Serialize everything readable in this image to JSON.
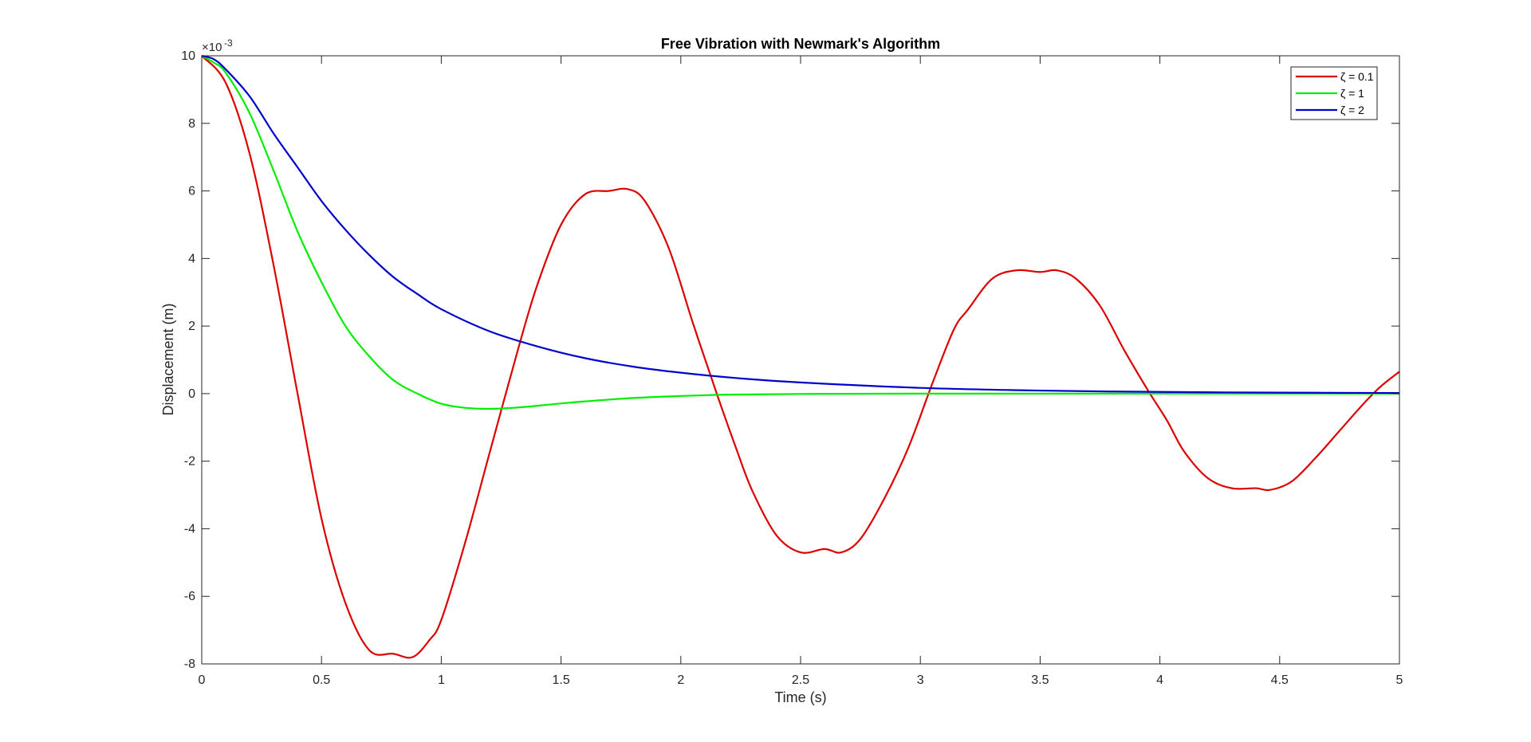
{
  "chart_data": {
    "type": "line",
    "title": "Free Vibration with Newmark's Algorithm",
    "xlabel": "Time (s)",
    "ylabel": "Displacement (m)",
    "xlim": [
      0,
      5
    ],
    "ylim": [
      -8,
      10
    ],
    "y_exponent_label": "×10",
    "y_exponent_power": "-3",
    "xticks": [
      "0",
      "0.5",
      "1",
      "1.5",
      "2",
      "2.5",
      "3",
      "3.5",
      "4",
      "4.5",
      "5"
    ],
    "yticks": [
      "-8",
      "-6",
      "-4",
      "-2",
      "0",
      "2",
      "4",
      "6",
      "8",
      "10"
    ],
    "grid": false,
    "legend_position": "top-right",
    "series": [
      {
        "name": "ζ = 0.1",
        "color": "#dd0000",
        "x": [
          0,
          0.1,
          0.2,
          0.3,
          0.4,
          0.5,
          0.6,
          0.7,
          0.8,
          0.88,
          0.95,
          1.0,
          1.1,
          1.2,
          1.32,
          1.4,
          1.5,
          1.6,
          1.7,
          1.78,
          1.85,
          1.95,
          2.05,
          2.15,
          2.23,
          2.3,
          2.4,
          2.5,
          2.6,
          2.67,
          2.75,
          2.85,
          2.95,
          3.05,
          3.14,
          3.2,
          3.3,
          3.4,
          3.5,
          3.57,
          3.65,
          3.75,
          3.85,
          3.95,
          4.03,
          4.1,
          4.2,
          4.3,
          4.4,
          4.46,
          4.55,
          4.65,
          4.75,
          4.85,
          4.92,
          5.0
        ],
        "y": [
          10.0,
          9.2,
          7.1,
          3.8,
          0.0,
          -3.7,
          -6.2,
          -7.6,
          -7.7,
          -7.8,
          -7.3,
          -6.7,
          -4.4,
          -1.8,
          1.3,
          3.2,
          5.0,
          5.9,
          6.0,
          6.05,
          5.7,
          4.3,
          2.1,
          0.0,
          -1.6,
          -2.9,
          -4.2,
          -4.7,
          -4.6,
          -4.7,
          -4.3,
          -3.1,
          -1.6,
          0.3,
          1.9,
          2.5,
          3.4,
          3.65,
          3.6,
          3.65,
          3.4,
          2.6,
          1.3,
          0.1,
          -0.8,
          -1.7,
          -2.5,
          -2.8,
          -2.8,
          -2.85,
          -2.6,
          -1.9,
          -1.1,
          -0.3,
          0.2,
          0.65
        ]
      },
      {
        "name": "ζ = 1",
        "color": "#00ee00",
        "x": [
          0,
          0.05,
          0.1,
          0.2,
          0.3,
          0.4,
          0.5,
          0.6,
          0.7,
          0.8,
          0.9,
          1.0,
          1.1,
          1.2,
          1.3,
          1.4,
          1.5,
          1.6,
          1.8,
          2.0,
          2.2,
          2.5,
          3.0,
          3.5,
          4.0,
          4.5,
          5.0
        ],
        "y": [
          10.0,
          9.8,
          9.5,
          8.3,
          6.6,
          4.8,
          3.3,
          2.0,
          1.1,
          0.4,
          0.0,
          -0.3,
          -0.42,
          -0.45,
          -0.42,
          -0.36,
          -0.29,
          -0.23,
          -0.13,
          -0.07,
          -0.03,
          -0.01,
          0.0,
          0.0,
          0.0,
          0.0,
          0.0
        ]
      },
      {
        "name": "ζ = 2",
        "color": "#0000cc",
        "x": [
          0,
          0.05,
          0.1,
          0.2,
          0.3,
          0.4,
          0.5,
          0.6,
          0.7,
          0.8,
          0.9,
          1.0,
          1.2,
          1.4,
          1.6,
          1.8,
          2.0,
          2.25,
          2.5,
          3.0,
          3.5,
          4.0,
          4.5,
          5.0
        ],
        "y": [
          10.0,
          9.9,
          9.6,
          8.8,
          7.7,
          6.7,
          5.7,
          4.85,
          4.1,
          3.45,
          2.95,
          2.5,
          1.85,
          1.4,
          1.05,
          0.8,
          0.62,
          0.45,
          0.33,
          0.17,
          0.09,
          0.05,
          0.03,
          0.02
        ]
      }
    ]
  }
}
